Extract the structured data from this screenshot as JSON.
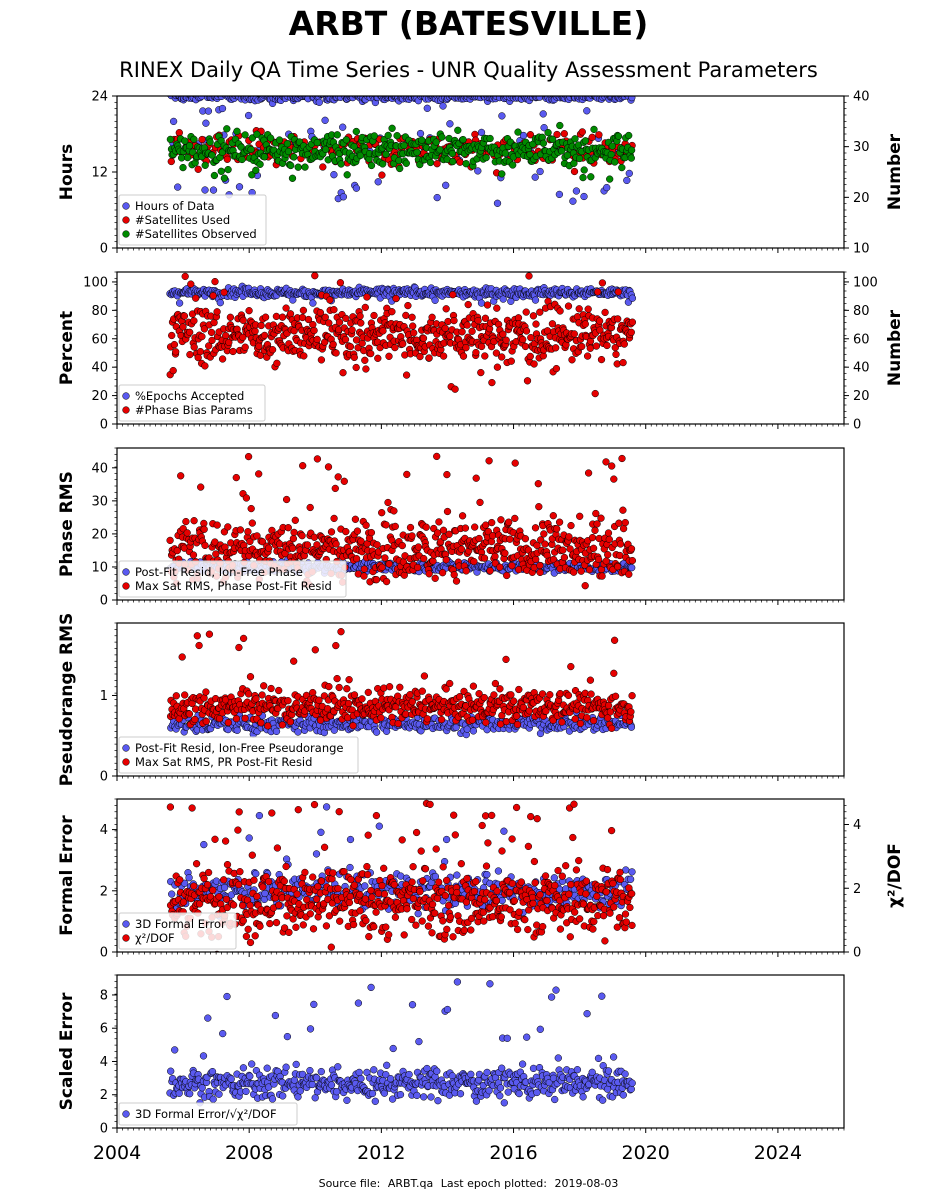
{
  "title": "ARBT (BATESVILLE)",
  "subtitle": "RINEX Daily QA Time Series - UNR Quality Assessment Parameters",
  "footer": {
    "source_label": "Source file:",
    "source_file": "ARBT.qa",
    "last_epoch_label": "Last epoch plotted:",
    "last_epoch": "2019-08-03"
  },
  "colors": {
    "blue": "#5a5af0",
    "red": "#e60000",
    "green": "#008a00",
    "edge": "#000000"
  },
  "x_axis": {
    "range": [
      2004.0,
      2026.0
    ],
    "ticks": [
      "2004",
      "2008",
      "2012",
      "2016",
      "2020",
      "2024"
    ],
    "tick_values": [
      2004,
      2008,
      2012,
      2016,
      2020,
      2024
    ]
  },
  "chart_data": [
    {
      "type": "scatter",
      "ylabel": "Hours",
      "ylabel_right": "Number",
      "ylim": [
        0,
        24
      ],
      "yticks": [
        "0",
        "12",
        "24"
      ],
      "ylim_right": [
        10,
        40
      ],
      "yticks_right": [
        "10",
        "20",
        "30",
        "40"
      ],
      "legend": "lower-left",
      "series": [
        {
          "name": "Hours of Data",
          "color": "blue",
          "axis": "left",
          "x_range": [
            2005.6,
            2019.6
          ],
          "base": 23.8,
          "spread": 0.25,
          "outlier_prob": 0.22,
          "outlier_range": [
            7,
            23.5
          ],
          "n": 400
        },
        {
          "name": "#Satellites Used",
          "color": "red",
          "axis": "right",
          "x_range": [
            2005.6,
            2019.6
          ],
          "base": 29.5,
          "spread": 1.5,
          "outlier_prob": 0.05,
          "outlier_range": [
            24,
            28
          ],
          "n": 250
        },
        {
          "name": "#Satellites Observed",
          "color": "green",
          "axis": "right",
          "x_range": [
            2005.6,
            2019.6
          ],
          "base": 29.5,
          "spread": 1.6,
          "outlier_prob": 0.06,
          "outlier_range": [
            23,
            28
          ],
          "n": 450
        }
      ]
    },
    {
      "type": "scatter",
      "ylabel": "Percent",
      "ylabel_right": "Number",
      "ylim": [
        0,
        107
      ],
      "yticks": [
        "0",
        "20",
        "40",
        "60",
        "80",
        "100"
      ],
      "ylim_right": [
        0,
        107
      ],
      "yticks_right": [
        "0",
        "20",
        "40",
        "60",
        "80",
        "100"
      ],
      "legend": "lower-left",
      "series": [
        {
          "name": "%Epochs Accepted",
          "color": "blue",
          "axis": "left",
          "x_range": [
            2005.6,
            2019.6
          ],
          "base": 92.5,
          "spread": 1.5,
          "outlier_prob": 0.03,
          "outlier_range": [
            85,
            90
          ],
          "n": 500
        },
        {
          "name": "#Phase Bias Params",
          "color": "red",
          "axis": "right",
          "x_range": [
            2005.6,
            2019.6
          ],
          "base": 63,
          "spread": 10,
          "outlier_prob": 0.08,
          "outlier_range": [
            20,
            105
          ],
          "n": 650
        }
      ]
    },
    {
      "type": "scatter",
      "ylabel": "Phase RMS",
      "ylim": [
        0,
        46
      ],
      "yticks": [
        "0",
        "10",
        "20",
        "30",
        "40"
      ],
      "legend": "lower-left",
      "series": [
        {
          "name": "Post-Fit Resid, Ion-Free Phase",
          "color": "blue",
          "axis": "left",
          "x_range": [
            2005.6,
            2019.6
          ],
          "base": 10,
          "spread": 0.8,
          "outlier_prob": 0.01,
          "outlier_range": [
            8,
            13
          ],
          "n": 400
        },
        {
          "name": "Max Sat RMS, Phase Post-Fit Resid",
          "color": "red",
          "axis": "left",
          "x_range": [
            2005.6,
            2019.6
          ],
          "base": 15.5,
          "spread": 4.5,
          "outlier_prob": 0.05,
          "outlier_range": [
            25,
            44
          ],
          "n": 650
        }
      ]
    },
    {
      "type": "scatter",
      "ylabel": "Pseudorange RMS",
      "ylim": [
        0,
        1.9
      ],
      "yticks": [
        "0",
        "1"
      ],
      "legend": "lower-left",
      "series": [
        {
          "name": "Post-Fit Resid, Ion-Free Pseudorange",
          "color": "blue",
          "axis": "left",
          "x_range": [
            2005.6,
            2019.6
          ],
          "base": 0.65,
          "spread": 0.05,
          "outlier_prob": 0.01,
          "outlier_range": [
            0.5,
            1.0
          ],
          "n": 400
        },
        {
          "name": "Max Sat RMS, PR Post-Fit Resid",
          "color": "red",
          "axis": "left",
          "x_range": [
            2005.6,
            2019.6
          ],
          "base": 0.86,
          "spread": 0.1,
          "outlier_prob": 0.05,
          "outlier_range": [
            1.1,
            1.8
          ],
          "n": 550
        }
      ]
    },
    {
      "type": "scatter",
      "ylabel": "Formal Error",
      "ylabel_right": "χ²/DOF",
      "ylim": [
        0,
        5
      ],
      "yticks": [
        "0",
        "2",
        "4"
      ],
      "ylim_right": [
        0,
        4.8
      ],
      "yticks_right": [
        "0",
        "2",
        "4"
      ],
      "legend": "lower-left",
      "series": [
        {
          "name": "3D Formal Error",
          "color": "blue",
          "axis": "left",
          "x_range": [
            2005.6,
            2019.6
          ],
          "base": 2.0,
          "spread": 0.3,
          "outlier_prob": 0.05,
          "outlier_range": [
            2.5,
            4.9
          ],
          "n": 400
        },
        {
          "name": "χ²/DOF",
          "color": "red",
          "axis": "right",
          "x_range": [
            2005.6,
            2019.6
          ],
          "base": 1.6,
          "spread": 0.55,
          "outlier_prob": 0.05,
          "outlier_range": [
            3.0,
            4.7
          ],
          "n": 650
        }
      ]
    },
    {
      "type": "scatter",
      "ylabel": "Scaled Error",
      "ylim": [
        0,
        9.2
      ],
      "yticks": [
        "0",
        "2",
        "4",
        "6",
        "8"
      ],
      "legend": "lower-left",
      "series": [
        {
          "name": "3D Formal Error/√χ²/DOF",
          "color": "blue",
          "axis": "left",
          "x_range": [
            2005.6,
            2019.6
          ],
          "base": 2.7,
          "spread": 0.45,
          "outlier_prob": 0.04,
          "outlier_range": [
            4.0,
            8.8
          ],
          "n": 550
        }
      ]
    }
  ]
}
